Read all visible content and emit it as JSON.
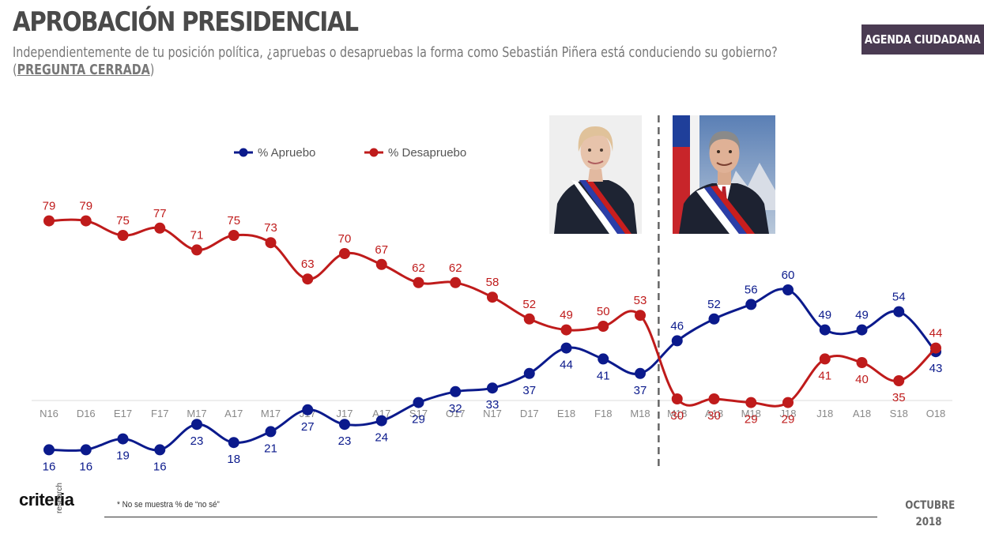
{
  "header": {
    "title": "APROBACIÓN PRESIDENCIAL",
    "subtitle": "Independientemente de tu posición política, ¿apruebas o desapruebas la forma como Sebastián Piñera está conduciendo su gobierno?",
    "question_type": "PREGUNTA CERRADA",
    "badge": "AGENDA CIUDADANA"
  },
  "footer": {
    "logo": "criteria",
    "logo_sub": "research",
    "note": "* No se muestra % de “no sé”",
    "month": "OCTUBRE",
    "year": "2018"
  },
  "colors": {
    "apruebo": "#0b1a8c",
    "desapruebo": "#bf1b1b",
    "axis": "#dddddd",
    "divider": "#666666"
  },
  "chart_data": {
    "type": "line",
    "categories": [
      "N16",
      "D16",
      "E17",
      "F17",
      "M17",
      "A17",
      "M17",
      "J17",
      "J17",
      "A17",
      "S17",
      "O17",
      "N17",
      "D17",
      "E18",
      "F18",
      "M18",
      "M18",
      "A18",
      "M18",
      "J18",
      "J18",
      "A18",
      "S18",
      "O18"
    ],
    "series": [
      {
        "name": "% Apruebo",
        "color": "#0b1a8c",
        "values": [
          16,
          16,
          19,
          16,
          23,
          18,
          21,
          27,
          23,
          24,
          29,
          32,
          33,
          37,
          44,
          41,
          37,
          46,
          52,
          56,
          60,
          49,
          49,
          54,
          43
        ]
      },
      {
        "name": "% Desapruebo",
        "color": "#bf1b1b",
        "values": [
          79,
          79,
          75,
          77,
          71,
          75,
          73,
          63,
          70,
          67,
          62,
          62,
          58,
          52,
          49,
          50,
          53,
          30,
          30,
          29,
          29,
          41,
          40,
          35,
          44
        ]
      }
    ],
    "divider_after_index": 16,
    "legend": "top-left",
    "grid": false
  }
}
